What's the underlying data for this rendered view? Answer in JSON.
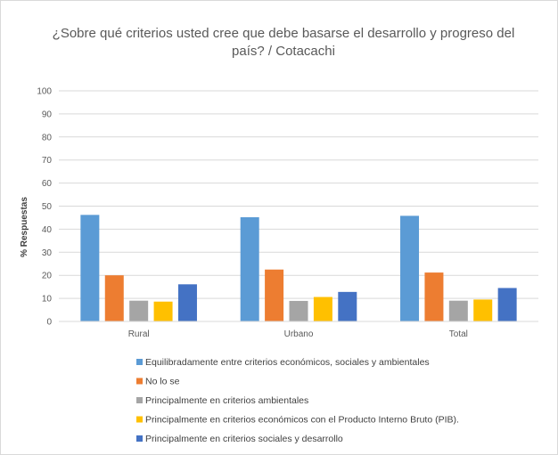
{
  "chart_data": {
    "type": "bar",
    "title_line1": "¿Sobre qué criterios usted cree que debe basarse el desarrollo y progreso del",
    "title_line2": "país? / Cotacachi",
    "ylabel": "% Respuestas",
    "xlabel": "",
    "ylim": [
      0,
      100
    ],
    "yticks": [
      0,
      10,
      20,
      30,
      40,
      50,
      60,
      70,
      80,
      90,
      100
    ],
    "grid": true,
    "legend_position": "bottom",
    "categories": [
      "Rural",
      "Urbano",
      "Total"
    ],
    "series": [
      {
        "name": "Equilibradamente entre criterios económicos, sociales y ambientales",
        "color": "#5b9bd5",
        "values": [
          46.2,
          45.2,
          45.8
        ]
      },
      {
        "name": "No lo se",
        "color": "#ed7d31",
        "values": [
          20.0,
          22.5,
          21.2
        ]
      },
      {
        "name": "Principalmente en criterios ambientales",
        "color": "#a5a5a5",
        "values": [
          9.0,
          8.9,
          9.0
        ]
      },
      {
        "name": "Principalmente en criterios económicos con el Producto Interno Bruto (PIB).",
        "color": "#ffc000",
        "values": [
          8.6,
          10.6,
          9.5
        ]
      },
      {
        "name": "Principalmente en criterios sociales y desarrollo",
        "color": "#4472c4",
        "values": [
          16.1,
          12.8,
          14.5
        ]
      }
    ]
  }
}
